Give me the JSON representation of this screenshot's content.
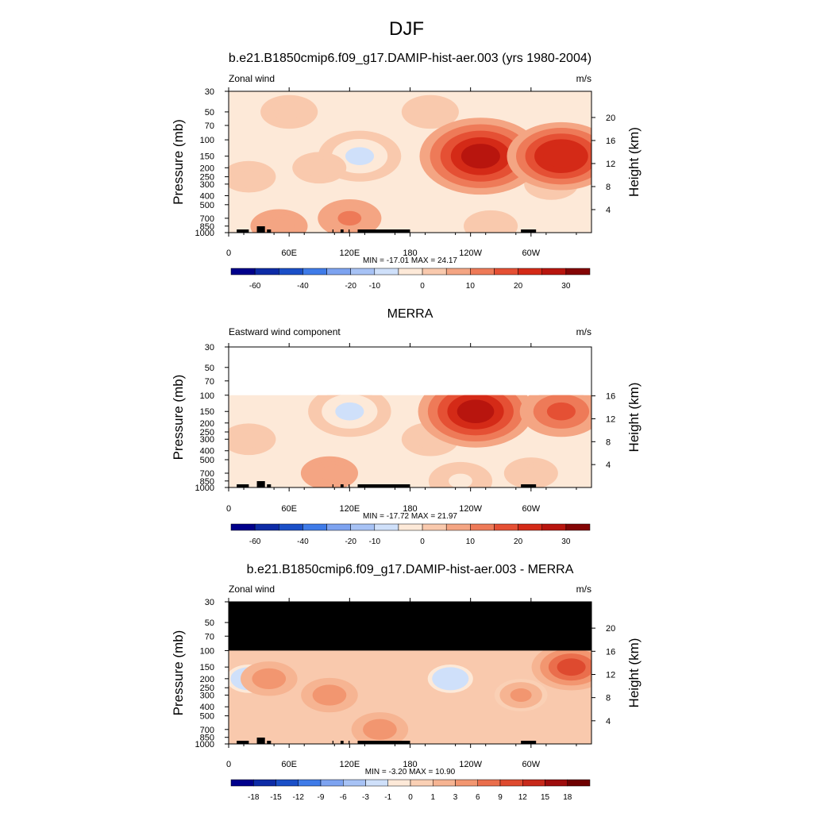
{
  "page_title": "DJF",
  "chart_data": [
    {
      "type": "heatmap",
      "title": "b.e21.B1850cmip6.f09_g17.DAMIP-hist-aer.003 (yrs 1980-2004)",
      "left_label": "Zonal wind",
      "units": "m/s",
      "ylabel": "Pressure (mb)",
      "y2label": "Height (km)",
      "pressure_ticks": [
        "30",
        "50",
        "70",
        "100",
        "150",
        "200",
        "250",
        "300",
        "400",
        "500",
        "700",
        "850",
        "1000"
      ],
      "height_ticks": [
        "4",
        "8",
        "12",
        "16",
        "20"
      ],
      "x_ticks": [
        "0",
        "60E",
        "120E",
        "180",
        "120W",
        "60W"
      ],
      "stats": "MIN = -17.01  MAX =  24.17",
      "colorbar_labels": [
        "-60",
        "-40",
        "-20",
        "-10",
        "0",
        "10",
        "20",
        "30"
      ],
      "data_top_pressure": 30,
      "features": [
        {
          "lon": 130,
          "p": 150,
          "value": -12
        },
        {
          "lon": 60,
          "p": 50,
          "value": -4
        },
        {
          "lon": 200,
          "p": 50,
          "value": -4
        },
        {
          "lon": 20,
          "p": 250,
          "value": -3
        },
        {
          "lon": 90,
          "p": 200,
          "value": -3
        },
        {
          "lon": 320,
          "p": 300,
          "value": -3
        },
        {
          "lon": 250,
          "p": 150,
          "value": 24.17
        },
        {
          "lon": 330,
          "p": 150,
          "value": 20
        },
        {
          "lon": 120,
          "p": 700,
          "value": 6
        },
        {
          "lon": 50,
          "p": 850,
          "value": 4
        },
        {
          "lon": 260,
          "p": 850,
          "value": -3
        }
      ]
    },
    {
      "type": "heatmap",
      "title": "MERRA",
      "left_label": "Eastward wind component",
      "units": "m/s",
      "ylabel": "Pressure (mb)",
      "y2label": "Height (km)",
      "pressure_ticks": [
        "30",
        "50",
        "70",
        "100",
        "150",
        "200",
        "250",
        "300",
        "400",
        "500",
        "700",
        "850",
        "1000"
      ],
      "height_ticks": [
        "4",
        "8",
        "12",
        "16"
      ],
      "x_ticks": [
        "0",
        "60E",
        "120E",
        "180",
        "120W",
        "60W"
      ],
      "stats": "MIN = -17.72  MAX =  21.97",
      "colorbar_labels": [
        "-60",
        "-40",
        "-20",
        "-10",
        "0",
        "10",
        "20",
        "30"
      ],
      "data_top_pressure": 100,
      "features": [
        {
          "lon": 120,
          "p": 150,
          "value": -12
        },
        {
          "lon": 20,
          "p": 300,
          "value": -3
        },
        {
          "lon": 200,
          "p": 300,
          "value": -4
        },
        {
          "lon": 245,
          "p": 150,
          "value": 21.97
        },
        {
          "lon": 330,
          "p": 150,
          "value": 12
        },
        {
          "lon": 100,
          "p": 700,
          "value": 4
        },
        {
          "lon": 230,
          "p": 850,
          "value": -6
        },
        {
          "lon": 300,
          "p": 700,
          "value": -3
        }
      ]
    },
    {
      "type": "heatmap",
      "title": "b.e21.B1850cmip6.f09_g17.DAMIP-hist-aer.003 - MERRA",
      "left_label": "Zonal wind",
      "units": "m/s",
      "ylabel": "Pressure (mb)",
      "y2label": "Height (km)",
      "pressure_ticks": [
        "30",
        "50",
        "70",
        "100",
        "150",
        "200",
        "250",
        "300",
        "400",
        "500",
        "700",
        "850",
        "1000"
      ],
      "height_ticks": [
        "4",
        "8",
        "12",
        "16",
        "20"
      ],
      "x_ticks": [
        "0",
        "60E",
        "120E",
        "180",
        "120W",
        "60W"
      ],
      "stats": "MIN = -3.20  MAX =  10.90",
      "colorbar_labels": [
        "-18",
        "-15",
        "-12",
        "-9",
        "-6",
        "-3",
        "-1",
        "0",
        "1",
        "3",
        "6",
        "9",
        "12",
        "15",
        "18"
      ],
      "data_top_pressure": 100,
      "features": [
        {
          "lon": 340,
          "p": 150,
          "value": 10.9
        },
        {
          "lon": 20,
          "p": 200,
          "value": -2
        },
        {
          "lon": 220,
          "p": 200,
          "value": -2
        },
        {
          "lon": 100,
          "p": 300,
          "value": 5
        },
        {
          "lon": 290,
          "p": 300,
          "value": 4
        },
        {
          "lon": 150,
          "p": 700,
          "value": 5
        },
        {
          "lon": 40,
          "p": 200,
          "value": 5
        }
      ]
    }
  ],
  "colors": {
    "scale1": [
      "#00008b",
      "#0d2ba6",
      "#1a4fc7",
      "#3f7be8",
      "#7da3f0",
      "#a7c2f5",
      "#cfe0fa",
      "#fde9d8",
      "#f9c9ad",
      "#f4a583",
      "#ee7a58",
      "#e55034",
      "#d42a17",
      "#b8150e",
      "#840505"
    ],
    "scale2": [
      "#00008b",
      "#0d2ba6",
      "#1a4fc7",
      "#3f7be8",
      "#7da3f0",
      "#a7c2f5",
      "#cfe0fa",
      "#fde9d8",
      "#fad0b5",
      "#f6b492",
      "#f29670",
      "#ea6e4c",
      "#de4a2f",
      "#c7291a",
      "#9e0c0c",
      "#6e0000"
    ]
  }
}
